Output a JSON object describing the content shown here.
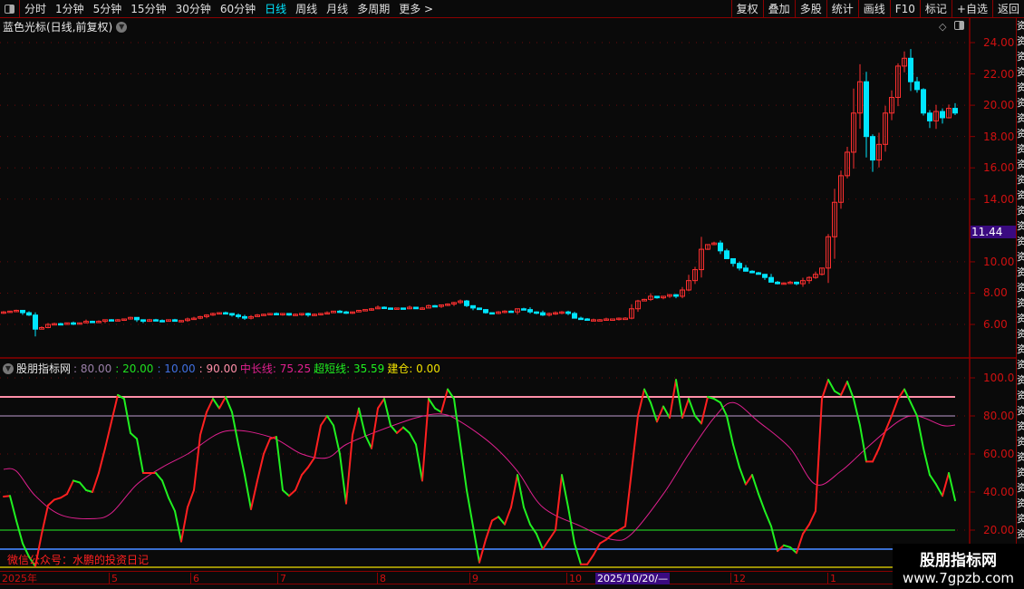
{
  "toolbar": {
    "periods": [
      "分时",
      "1分钟",
      "5分钟",
      "15分钟",
      "30分钟",
      "60分钟",
      "日线",
      "周线",
      "月线",
      "多周期",
      "更多 >"
    ],
    "active": "日线",
    "right_buttons": [
      "复权",
      "叠加",
      "多股",
      "统计",
      "画线",
      "F10",
      "标记",
      "+自选",
      "返回"
    ]
  },
  "chart_title": "蓝色光标(日线,前复权)",
  "price_axis": {
    "ticks": [
      "24.00",
      "22.00",
      "20.00",
      "18.00",
      "16.00",
      "14.00",
      "10.00",
      "8.00",
      "6.00"
    ],
    "current_price": "11.44"
  },
  "indicator": {
    "name": "股朋指标网",
    "params": [
      {
        "text": ": 80.00",
        "color": "#9a7fa8"
      },
      {
        "text": ": 20.00",
        "color": "#20e020"
      },
      {
        "text": ": 10.00",
        "color": "#4070e0"
      },
      {
        "text": ": 90.00",
        "color": "#ff8fa8"
      }
    ],
    "mid_label": "中长线: 75.25",
    "short_label": "超短线: 35.59",
    "build_label": "建仓: 0.00",
    "axis_ticks": [
      "100.0",
      "80.00",
      "60.00",
      "40.00",
      "20.00"
    ]
  },
  "date_axis": {
    "labels": [
      "2025年",
      "5",
      "6",
      "7",
      "8",
      "9",
      "10",
      "12",
      "1"
    ],
    "highlight": "2025/10/20/—"
  },
  "wechat_note": "微信公众号：水鹏的投资日记",
  "watermark": {
    "title": "股朋指标网",
    "url": "www.7gpzb.com"
  },
  "right_strip_text": "资资资资资资资资资资资资资资资资资资资资资资资资资资资资资资资资资资资",
  "colors": {
    "up": "#ff3030",
    "down": "#00e5ff",
    "mid_line": "#e0208f",
    "short_up": "#ff2020",
    "short_down": "#20f020",
    "line90": "#ff8fa8",
    "line80": "#9a7fa8",
    "line20": "#20c020",
    "line10": "#3a6fd0",
    "line0": "#f0e000",
    "active_period": "#00e5ff"
  },
  "chart_data": [
    {
      "type": "candlestick",
      "title": "蓝色光标(日线,前复权)",
      "ylim": [
        5,
        25
      ],
      "closes": [
        6.8,
        6.85,
        6.9,
        6.75,
        6.6,
        5.7,
        5.8,
        6.0,
        6.05,
        6.0,
        6.1,
        6.05,
        6.1,
        6.2,
        6.15,
        6.2,
        6.3,
        6.25,
        6.3,
        6.35,
        6.45,
        6.3,
        6.2,
        6.3,
        6.25,
        6.2,
        6.3,
        6.2,
        6.25,
        6.35,
        6.4,
        6.5,
        6.6,
        6.7,
        6.75,
        6.7,
        6.6,
        6.5,
        6.4,
        6.5,
        6.6,
        6.65,
        6.7,
        6.65,
        6.7,
        6.6,
        6.65,
        6.7,
        6.6,
        6.65,
        6.7,
        6.75,
        6.85,
        6.8,
        6.75,
        6.8,
        6.9,
        6.95,
        7.0,
        7.1,
        7.05,
        7.0,
        7.05,
        7.0,
        7.1,
        7.0,
        7.05,
        7.2,
        7.15,
        7.25,
        7.3,
        7.4,
        7.5,
        7.2,
        7.05,
        6.95,
        6.75,
        6.7,
        6.8,
        6.85,
        6.8,
        7.0,
        6.95,
        6.8,
        6.75,
        6.6,
        6.7,
        6.75,
        6.8,
        6.7,
        6.4,
        6.35,
        6.3,
        6.3,
        6.3,
        6.35,
        6.35,
        6.4,
        6.4,
        7.0,
        7.5,
        7.6,
        7.8,
        7.7,
        7.8,
        7.9,
        7.8,
        8.2,
        8.8,
        9.5,
        10.8,
        11.1,
        11.2,
        10.7,
        10.2,
        9.9,
        9.6,
        9.4,
        9.3,
        9.2,
        9.0,
        8.7,
        8.6,
        8.65,
        8.7,
        8.6,
        8.8,
        9.0,
        9.2,
        9.6,
        11.6,
        13.8,
        15.5,
        17.0,
        19.5,
        21.5,
        18.0,
        16.5,
        17.5,
        19.5,
        20.5,
        22.5,
        23.0,
        21.5,
        21.0,
        19.5,
        19.0,
        19.6,
        19.2,
        19.8,
        19.5
      ]
    },
    {
      "type": "line",
      "ylim": [
        0,
        100
      ],
      "hlines": [
        90,
        80,
        20,
        10,
        0
      ],
      "series": [
        {
          "name": "超短线",
          "values": [
            37.6,
            38,
            25,
            13,
            6,
            1,
            18,
            33,
            36,
            37,
            39,
            46,
            45,
            41,
            40,
            50,
            63,
            77,
            91,
            89,
            71,
            68,
            50,
            50,
            50,
            46,
            37,
            30,
            14,
            32,
            41,
            70,
            82,
            89,
            84,
            90,
            82,
            65,
            49,
            31,
            46,
            60,
            68,
            69,
            41,
            38,
            41,
            49,
            53,
            58,
            75,
            80,
            75,
            60,
            34,
            70,
            84,
            70,
            63,
            84,
            89,
            75,
            71,
            74,
            71,
            65,
            46,
            89,
            84,
            82,
            94,
            89,
            65,
            41,
            22,
            3,
            15,
            25,
            27,
            23,
            32,
            49,
            32,
            23,
            18,
            10,
            15,
            20,
            49,
            32,
            13,
            2,
            2,
            7,
            13,
            15,
            18,
            20,
            22,
            51,
            80,
            94,
            87,
            77,
            85,
            79,
            99,
            79,
            89,
            80,
            76,
            90,
            89,
            87,
            80,
            65,
            53,
            44,
            49,
            39,
            30,
            22,
            9,
            12,
            11,
            8,
            18,
            23,
            30,
            89,
            99,
            93,
            91,
            98,
            89,
            75,
            56,
            56,
            63,
            72,
            80,
            89,
            94,
            87,
            80,
            63,
            49,
            44,
            38,
            50,
            35.59
          ]
        },
        {
          "name": "中长线",
          "points": [
            [
              0,
              52
            ],
            [
              2,
              51
            ],
            [
              5,
              38
            ],
            [
              9,
              28
            ],
            [
              14,
              26
            ],
            [
              17,
              29
            ],
            [
              21,
              44
            ],
            [
              25,
              53
            ],
            [
              29,
              60
            ],
            [
              35,
              72
            ],
            [
              42,
              69
            ],
            [
              47,
              60
            ],
            [
              51,
              58
            ],
            [
              54,
              65
            ],
            [
              59,
              72
            ],
            [
              65,
              79
            ],
            [
              69,
              81
            ],
            [
              72,
              77
            ],
            [
              77,
              65
            ],
            [
              81,
              51
            ],
            [
              85,
              32
            ],
            [
              91,
              22
            ],
            [
              96,
              15
            ],
            [
              99,
              18
            ],
            [
              104,
              39
            ],
            [
              108,
              60
            ],
            [
              112,
              79
            ],
            [
              115,
              87
            ],
            [
              119,
              77
            ],
            [
              124,
              63
            ],
            [
              128,
              44
            ],
            [
              132,
              51
            ],
            [
              136,
              63
            ],
            [
              141,
              77
            ],
            [
              144,
              80
            ],
            [
              148,
              75
            ],
            [
              150,
              75.25
            ]
          ]
        }
      ]
    }
  ]
}
